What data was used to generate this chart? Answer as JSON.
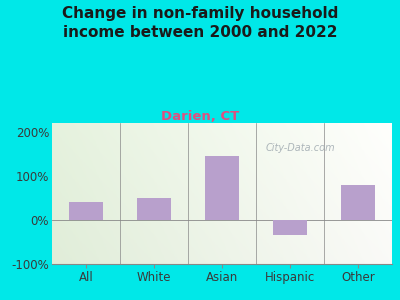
{
  "title": "Change in non-family household\nincome between 2000 and 2022",
  "subtitle": "Darien, CT",
  "categories": [
    "All",
    "White",
    "Asian",
    "Hispanic",
    "Other"
  ],
  "values": [
    40,
    50,
    145,
    -35,
    80
  ],
  "bar_color": "#b8a0cc",
  "title_fontsize": 11,
  "subtitle_fontsize": 9.5,
  "subtitle_color": "#e05080",
  "tick_fontsize": 8.5,
  "ylim": [
    -100,
    220
  ],
  "yticks": [
    -100,
    0,
    100,
    200
  ],
  "ytick_labels": [
    "-100%",
    "0%",
    "100%",
    "200%"
  ],
  "background_outer": "#00e8e8",
  "watermark": "City-Data.com",
  "watermark_color": "#a0aab0"
}
